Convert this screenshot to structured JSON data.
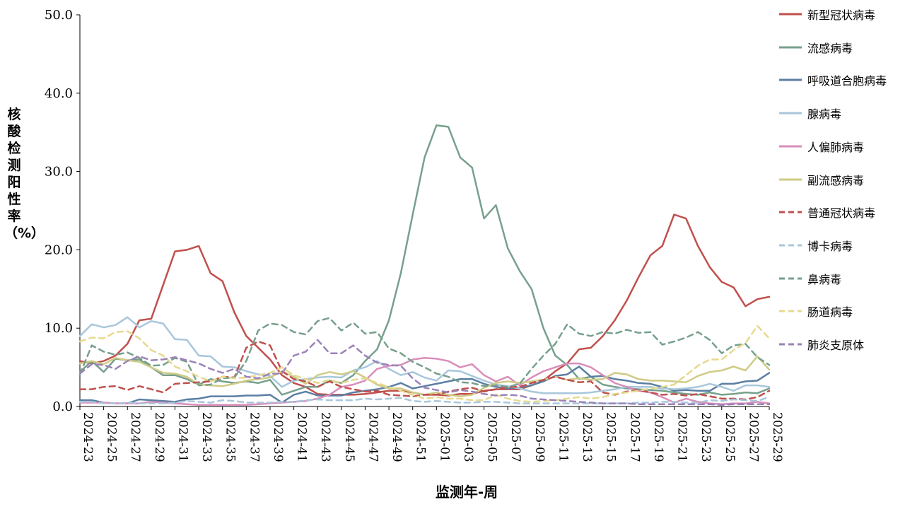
{
  "chart_data": {
    "type": "line",
    "xlabel": "监测年-周",
    "ylabel": "核酸检测阳性率（%）",
    "ylim": [
      0,
      50
    ],
    "yticks": [
      "0.0",
      "10.0",
      "20.0",
      "30.0",
      "40.0",
      "50.0"
    ],
    "grid": false,
    "legend_position": "right",
    "x": [
      "2024-23",
      "2024-24",
      "2024-25",
      "2024-26",
      "2024-27",
      "2024-28",
      "2024-29",
      "2024-30",
      "2024-31",
      "2024-32",
      "2024-33",
      "2024-34",
      "2024-35",
      "2024-36",
      "2024-37",
      "2024-38",
      "2024-39",
      "2024-40",
      "2024-41",
      "2024-42",
      "2024-43",
      "2024-44",
      "2024-45",
      "2024-46",
      "2024-47",
      "2024-48",
      "2024-49",
      "2024-50",
      "2024-51",
      "2024-52",
      "2025-01",
      "2025-02",
      "2025-03",
      "2025-04",
      "2025-05",
      "2025-06",
      "2025-07",
      "2025-08",
      "2025-09",
      "2025-10",
      "2025-11",
      "2025-12",
      "2025-13",
      "2025-14",
      "2025-15",
      "2025-16",
      "2025-17",
      "2025-18",
      "2025-19",
      "2025-20",
      "2025-21",
      "2025-22",
      "2025-23",
      "2025-24",
      "2025-25",
      "2025-26",
      "2025-27",
      "2025-28",
      "2025-29"
    ],
    "xticks": [
      "2024-23",
      "2024-25",
      "2024-27",
      "2024-29",
      "2024-31",
      "2024-33",
      "2024-35",
      "2024-37",
      "2024-39",
      "2024-41",
      "2024-43",
      "2024-45",
      "2024-47",
      "2024-49",
      "2024-51",
      "2025-01",
      "2025-03",
      "2025-05",
      "2025-07",
      "2025-09",
      "2025-11",
      "2025-13",
      "2025-15",
      "2025-17",
      "2025-19",
      "2025-21",
      "2025-23",
      "2025-25",
      "2025-27",
      "2025-29"
    ],
    "series": [
      {
        "name": "新型冠状病毒",
        "color": "#C0504D",
        "dash": false,
        "values": [
          5.8,
          5.5,
          5.8,
          6.5,
          8.0,
          11.0,
          11.2,
          15.5,
          19.8,
          20.0,
          20.5,
          17.0,
          16.0,
          12.0,
          9.0,
          7.5,
          6.0,
          4.0,
          3.0,
          2.5,
          1.6,
          1.5,
          1.5,
          1.5,
          1.6,
          1.8,
          2.0,
          2.0,
          1.8,
          1.5,
          1.5,
          1.4,
          1.6,
          1.6,
          2.0,
          2.2,
          2.2,
          2.2,
          2.7,
          3.3,
          4.5,
          5.5,
          7.3,
          7.5,
          9.0,
          11.0,
          13.5,
          16.5,
          19.3,
          20.5,
          24.5,
          24.0,
          20.5,
          17.8,
          15.9,
          15.2,
          12.8,
          13.7,
          14.0
        ]
      },
      {
        "name": "流感病毒",
        "color": "#77A08C",
        "dash": false,
        "values": [
          4.4,
          5.8,
          4.4,
          6.1,
          5.9,
          6.0,
          5.0,
          4.0,
          4.0,
          3.5,
          2.8,
          3.5,
          3.2,
          3.0,
          3.2,
          3.0,
          3.4,
          1.5,
          2.0,
          2.5,
          2.5,
          3.3,
          3.0,
          4.0,
          5.8,
          7.3,
          11.0,
          17.0,
          24.5,
          31.8,
          35.9,
          35.7,
          31.8,
          30.5,
          24.0,
          25.7,
          20.2,
          17.3,
          15.0,
          10.0,
          6.5,
          5.3,
          3.5,
          3.8,
          2.8,
          2.5,
          2.3,
          2.2,
          2.1,
          2.0,
          1.8,
          1.6,
          1.5,
          1.8,
          1.5,
          1.6,
          1.8,
          1.7,
          2.3
        ]
      },
      {
        "name": "呼吸道合胞病毒",
        "color": "#5B7FA3",
        "dash": false,
        "values": [
          0.8,
          0.8,
          0.5,
          0.4,
          0.4,
          0.9,
          0.8,
          0.7,
          0.6,
          0.9,
          1.0,
          1.3,
          1.3,
          1.3,
          1.4,
          1.4,
          1.5,
          0.5,
          1.5,
          1.9,
          1.4,
          1.4,
          1.4,
          1.8,
          2.0,
          2.2,
          2.5,
          3.0,
          2.3,
          2.6,
          2.9,
          3.2,
          3.5,
          3.5,
          2.9,
          2.5,
          2.3,
          2.4,
          2.7,
          3.2,
          3.9,
          4.1,
          5.1,
          3.8,
          3.9,
          3.5,
          3.3,
          3.0,
          2.9,
          2.5,
          2.0,
          2.1,
          2.0,
          2.0,
          2.9,
          2.9,
          3.2,
          3.3,
          4.3
        ]
      },
      {
        "name": "腺病毒",
        "color": "#A8C7DC",
        "dash": false,
        "values": [
          9.0,
          10.5,
          10.1,
          10.4,
          11.4,
          10.1,
          10.9,
          10.6,
          8.6,
          8.5,
          6.5,
          6.4,
          5.1,
          5.0,
          4.5,
          4.1,
          3.9,
          2.5,
          3.3,
          3.5,
          3.7,
          3.8,
          3.7,
          4.6,
          5.0,
          5.8,
          4.8,
          4.0,
          4.4,
          3.7,
          3.3,
          4.6,
          4.5,
          3.9,
          3.3,
          2.8,
          2.6,
          2.3,
          1.9,
          1.7,
          1.7,
          1.7,
          1.7,
          1.8,
          2.0,
          2.2,
          2.5,
          2.5,
          2.5,
          2.3,
          2.2,
          2.3,
          2.5,
          2.9,
          2.5,
          2.0,
          2.7,
          2.7,
          2.5
        ]
      },
      {
        "name": "人偏肺病毒",
        "color": "#D98EBB",
        "dash": false,
        "values": [
          0.5,
          0.5,
          0.5,
          0.4,
          0.4,
          0.4,
          0.6,
          0.5,
          0.4,
          0.3,
          0.2,
          0.2,
          0.2,
          0.2,
          0.2,
          0.3,
          0.4,
          0.5,
          0.6,
          0.7,
          1.0,
          1.5,
          2.5,
          2.8,
          3.3,
          4.8,
          5.2,
          5.3,
          6.0,
          6.2,
          6.1,
          5.8,
          5.0,
          5.4,
          4.0,
          3.2,
          3.8,
          2.7,
          3.7,
          4.5,
          5.0,
          5.5,
          5.5,
          5.0,
          4.0,
          3.0,
          2.5,
          2.0,
          1.8,
          1.2,
          0.5,
          1.0,
          0.6,
          0.4,
          0.3,
          0.4,
          0.4,
          0.6,
          0.4
        ]
      },
      {
        "name": "副流感病毒",
        "color": "#CFCB86",
        "dash": false,
        "values": [
          5.5,
          5.8,
          5.4,
          6.2,
          5.9,
          5.7,
          5.0,
          4.3,
          4.2,
          3.8,
          2.8,
          2.7,
          2.6,
          2.9,
          3.3,
          3.5,
          3.7,
          4.5,
          3.8,
          2.9,
          4.0,
          4.4,
          4.1,
          4.5,
          3.7,
          2.8,
          2.3,
          2.3,
          1.8,
          1.5,
          1.8,
          1.5,
          1.3,
          1.5,
          2.4,
          3.0,
          3.2,
          3.0,
          3.2,
          3.4,
          3.8,
          3.4,
          3.6,
          3.4,
          3.5,
          4.3,
          4.1,
          3.5,
          3.3,
          3.3,
          3.2,
          3.1,
          3.9,
          4.4,
          4.6,
          5.1,
          4.6,
          6.4,
          4.7
        ]
      },
      {
        "name": "普通冠状病毒",
        "color": "#C0504D",
        "dash": true,
        "values": [
          2.2,
          2.2,
          2.5,
          2.6,
          2.1,
          2.6,
          2.2,
          1.8,
          2.9,
          3.0,
          3.1,
          3.2,
          3.8,
          3.7,
          7.5,
          8.3,
          7.8,
          4.5,
          3.5,
          3.2,
          2.5,
          3.2,
          2.5,
          2.2,
          1.9,
          2.0,
          1.5,
          1.4,
          1.3,
          1.5,
          1.5,
          1.9,
          2.2,
          2.4,
          1.9,
          2.2,
          2.5,
          2.5,
          3.0,
          3.4,
          3.8,
          3.4,
          3.1,
          3.2,
          1.8,
          1.5,
          1.9,
          2.1,
          1.8,
          1.5,
          1.6,
          1.4,
          1.6,
          1.3,
          1.0,
          1.0,
          0.9,
          1.2,
          2.0
        ]
      },
      {
        "name": "博卡病毒",
        "color": "#A8C7DC",
        "dash": true,
        "values": [
          0.6,
          0.6,
          0.4,
          0.4,
          0.5,
          0.4,
          0.4,
          0.4,
          0.5,
          0.7,
          0.6,
          0.5,
          0.8,
          0.7,
          0.5,
          0.5,
          0.5,
          0.6,
          0.6,
          0.8,
          0.9,
          0.8,
          0.8,
          0.8,
          1.0,
          0.9,
          1.0,
          1.1,
          0.7,
          0.6,
          0.7,
          0.6,
          0.5,
          0.5,
          0.6,
          0.6,
          0.5,
          0.4,
          0.4,
          0.4,
          0.4,
          0.4,
          0.4,
          0.4,
          0.4,
          0.4,
          0.4,
          0.5,
          0.5,
          0.6,
          0.6,
          0.5,
          0.5,
          0.8,
          0.7,
          0.9,
          0.8,
          0.7,
          1.2
        ]
      },
      {
        "name": "鼻病毒",
        "color": "#77A08C",
        "dash": true,
        "values": [
          4.1,
          7.8,
          7.0,
          6.6,
          6.9,
          6.2,
          5.2,
          5.3,
          6.2,
          5.7,
          2.7,
          2.8,
          3.6,
          3.7,
          5.8,
          9.7,
          10.6,
          10.4,
          9.5,
          9.2,
          10.9,
          11.3,
          9.7,
          10.7,
          9.3,
          9.5,
          7.4,
          6.8,
          5.7,
          5.0,
          4.2,
          3.8,
          3.1,
          3.0,
          2.6,
          2.7,
          2.5,
          2.9,
          4.8,
          6.5,
          8.0,
          10.5,
          9.3,
          9.0,
          9.5,
          9.3,
          9.8,
          9.4,
          9.5,
          7.9,
          8.3,
          8.8,
          9.5,
          8.5,
          6.8,
          7.8,
          8.0,
          6.3,
          5.3
        ]
      },
      {
        "name": "肠道病毒",
        "color": "#E6D98F",
        "dash": true,
        "values": [
          8.3,
          8.8,
          8.7,
          9.5,
          9.6,
          8.7,
          7.2,
          6.5,
          5.1,
          4.5,
          3.8,
          3.2,
          3.8,
          3.6,
          3.7,
          4.0,
          4.3,
          5.0,
          4.0,
          3.5,
          3.0,
          3.4,
          3.0,
          3.4,
          3.6,
          3.0,
          2.5,
          2.0,
          1.5,
          1.0,
          1.2,
          1.0,
          1.0,
          0.8,
          0.8,
          1.5,
          1.0,
          0.7,
          0.6,
          0.7,
          0.8,
          1.0,
          1.2,
          1.0,
          1.2,
          1.6,
          1.8,
          2.0,
          2.3,
          2.5,
          2.8,
          4.0,
          5.2,
          6.0,
          6.0,
          7.2,
          8.1,
          10.3,
          8.7
        ]
      },
      {
        "name": "肺炎支原体",
        "color": "#9B82B8",
        "dash": true,
        "values": [
          4.2,
          5.4,
          5.3,
          4.8,
          5.8,
          6.4,
          5.9,
          6.0,
          6.3,
          5.9,
          5.5,
          4.8,
          4.3,
          4.8,
          3.8,
          3.6,
          4.2,
          4.2,
          6.5,
          7.0,
          8.5,
          6.8,
          6.8,
          7.8,
          6.5,
          5.6,
          5.3,
          5.2,
          3.6,
          2.4,
          2.1,
          1.8,
          2.1,
          1.9,
          1.6,
          1.4,
          1.5,
          1.4,
          1.0,
          0.9,
          0.8,
          0.7,
          0.6,
          0.5,
          0.4,
          0.4,
          0.4,
          0.3,
          0.3,
          0.3,
          0.3,
          0.3,
          0.3,
          0.3,
          0.2,
          0.3,
          0.3,
          0.3,
          0.3
        ]
      }
    ]
  }
}
